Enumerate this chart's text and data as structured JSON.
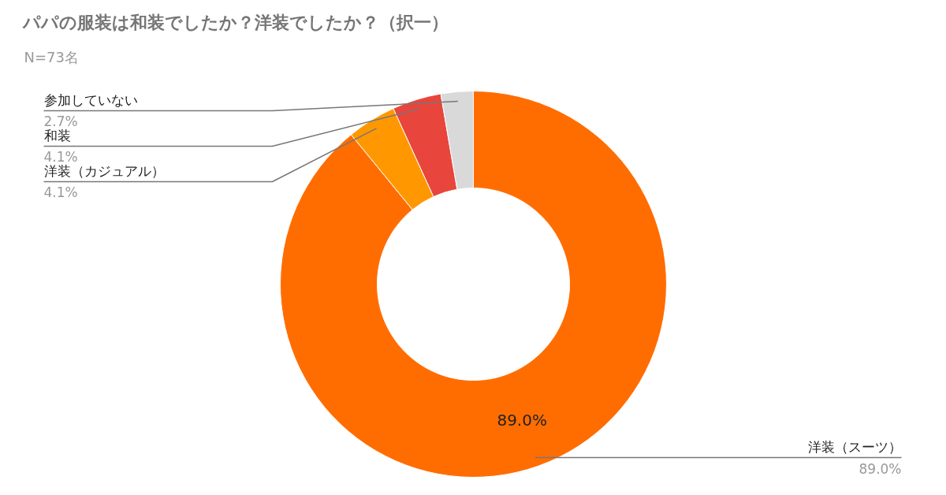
{
  "chart_data": {
    "type": "donut",
    "title": "パパの服装は和装でしたか？洋装でしたか？（択一）",
    "subtitle": "N=73名",
    "categories": [
      "洋装（スーツ）",
      "洋装（カジュアル）",
      "和装",
      "参加していない"
    ],
    "values": [
      89.0,
      4.1,
      4.1,
      2.7
    ],
    "colors": [
      "#ff6d00",
      "#ff9800",
      "#e8453c",
      "#d9d9d9"
    ],
    "value_labels": [
      "89.0%",
      "4.1%",
      "4.1%",
      "2.7%"
    ],
    "data_labels": true
  }
}
